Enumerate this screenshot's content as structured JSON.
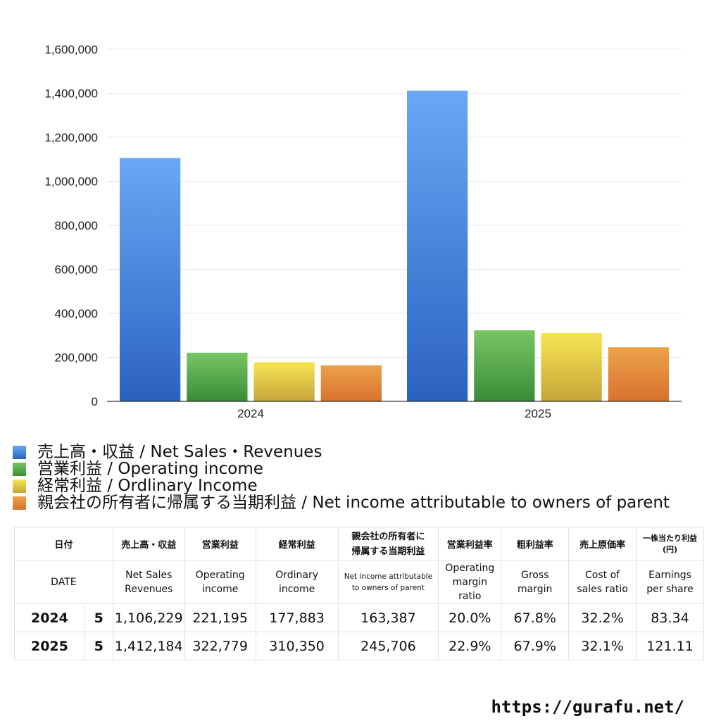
{
  "chart_data": {
    "type": "bar",
    "categories": [
      "2024",
      "2025"
    ],
    "ylim": [
      0,
      1600000
    ],
    "y_ticks": [
      "0",
      "200,000",
      "400,000",
      "600,000",
      "800,000",
      "1,000,000",
      "1,200,000",
      "1,400,000",
      "1,600,000"
    ],
    "y_tick_values": [
      0,
      200000,
      400000,
      600000,
      800000,
      1000000,
      1200000,
      1400000,
      1600000
    ],
    "grid": true,
    "legend_placement": "bottom",
    "series": [
      {
        "name": "売上高・収益 / Net Sales・Revenues",
        "values": [
          1106229,
          1412184
        ],
        "color_top": "#6aa8f5",
        "color_bottom": "#2b62c0"
      },
      {
        "name": "営業利益 / Operating income",
        "values": [
          221195,
          322779
        ],
        "color_top": "#78c564",
        "color_bottom": "#3a8c36"
      },
      {
        "name": "経常利益 / Ordlinary Income",
        "values": [
          177883,
          310350
        ],
        "color_top": "#f7e552",
        "color_bottom": "#c6a43a"
      },
      {
        "name": "親会社の所有者に帰属する当期利益 / Net income attributable to owners of parent",
        "values": [
          163387,
          245706
        ],
        "color_top": "#eda24a",
        "color_bottom": "#d8722e"
      }
    ]
  },
  "table": {
    "headers_jp": [
      "日付",
      "売上高・収益",
      "営業利益",
      "経常利益",
      "親会社の所有者に\n帰属する当期利益",
      "営業利益率",
      "粗利益率",
      "売上原価率",
      "一株当たり利益\n(円)"
    ],
    "headers_en": [
      "DATE",
      "Net Sales\nRevenues",
      "Operating\nincome",
      "Ordinary\nincome",
      "Net income attributable\nto owners of parent",
      "Operating\nmargin\nratio",
      "Gross\nmargin",
      "Cost of\nsales ratio",
      "Earnings\nper share"
    ],
    "rows": [
      {
        "year": "2024",
        "month": "5",
        "sales": "1,106,229",
        "operating": "221,195",
        "ordinary": "177,883",
        "net": "163,387",
        "op_margin": "20.0%",
        "gross": "67.8%",
        "cost": "32.2%",
        "eps": "83.34"
      },
      {
        "year": "2025",
        "month": "5",
        "sales": "1,412,184",
        "operating": "322,779",
        "ordinary": "310,350",
        "net": "245,706",
        "op_margin": "22.9%",
        "gross": "67.9%",
        "cost": "32.1%",
        "eps": "121.11"
      }
    ]
  },
  "footer": {
    "url": "https://gurafu.net/"
  }
}
